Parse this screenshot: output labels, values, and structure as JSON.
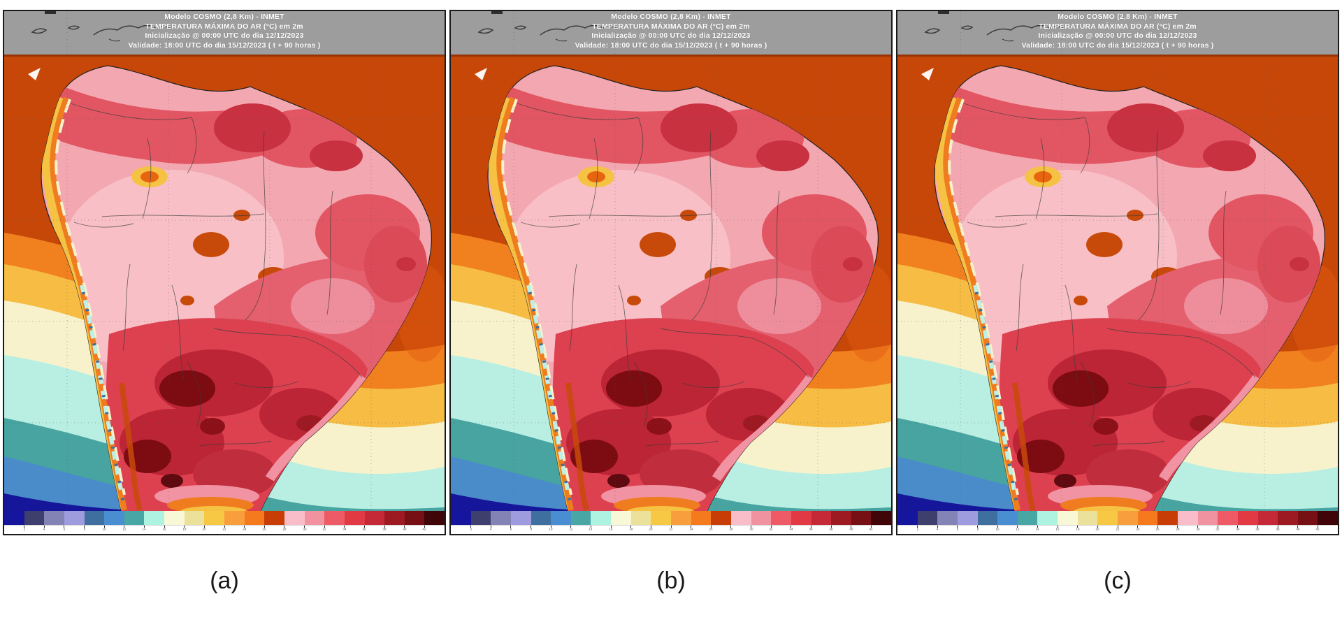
{
  "figure": {
    "panels": [
      {
        "caption": "(a)",
        "header": {
          "line1": "Modelo COSMO (2,8 Km) - INMET",
          "line2": "TEMPERATURA MÁXIMA DO AR (°C) em 2m",
          "line3": "Inicialização @ 00:00 UTC do dia 12/12/2023",
          "line4": "Validade: 18:00 UTC do dia 15/12/2023 ( t + 90 horas )"
        }
      },
      {
        "caption": "(b)",
        "header": {
          "line1": "Modelo COSMO (2,8 Km) - INMET",
          "line2": "TEMPERATURA MÁXIMA DO AR (°C) em 2m",
          "line3": "Inicialização @ 00:00 UTC do dia 12/12/2023",
          "line4": "Validade: 18:00 UTC do dia 15/12/2023 ( t + 90 horas )"
        }
      },
      {
        "caption": "(c)",
        "header": {
          "line1": "Modelo COSMO (2,8 Km) - INMET",
          "line2": "TEMPERATURA MÁXIMA DO AR (°C) em 2m",
          "line3": "Inicialização @ 00:00 UTC do dia 12/12/2023",
          "line4": "Validade: 18:00 UTC do dia 15/12/2023 ( t + 90 horas )"
        }
      }
    ]
  },
  "colorbar": {
    "colors": [
      "#15159e",
      "#3e3f6d",
      "#8483b6",
      "#9e9cdf",
      "#3f6f9f",
      "#4a8ed2",
      "#48a7a4",
      "#aef2e1",
      "#f8f8d7",
      "#ebe19b",
      "#f6c844",
      "#f99e3c",
      "#f57a1d",
      "#c83d06",
      "#f9bdc9",
      "#f192a1",
      "#ee5a65",
      "#e13a45",
      "#c52837",
      "#9e1a23",
      "#761015",
      "#3f0508"
    ],
    "tick_labels": [
      "2",
      "4",
      "6",
      "8",
      "10",
      "12",
      "14",
      "16",
      "18",
      "20",
      "22",
      "24",
      "26",
      "28",
      "30",
      "32",
      "34",
      "36",
      "38",
      "40",
      "42"
    ]
  },
  "palette": {
    "ocean_hot": "#c74708",
    "ocean_warm": "#f1801f",
    "ocean_gold": "#f6bc43",
    "ocean_cream": "#f7f2cc",
    "ocean_aqua": "#b9efe3",
    "ocean_teal": "#47a4a0",
    "ocean_blue": "#4a8cc9",
    "ocean_navy": "#16169b",
    "land_light_pink": "#f3a8b1",
    "land_red": "#dd4150",
    "land_dark_red": "#bb2535",
    "land_maroon": "#7c0b12",
    "header_band": "#9d9d9d"
  }
}
